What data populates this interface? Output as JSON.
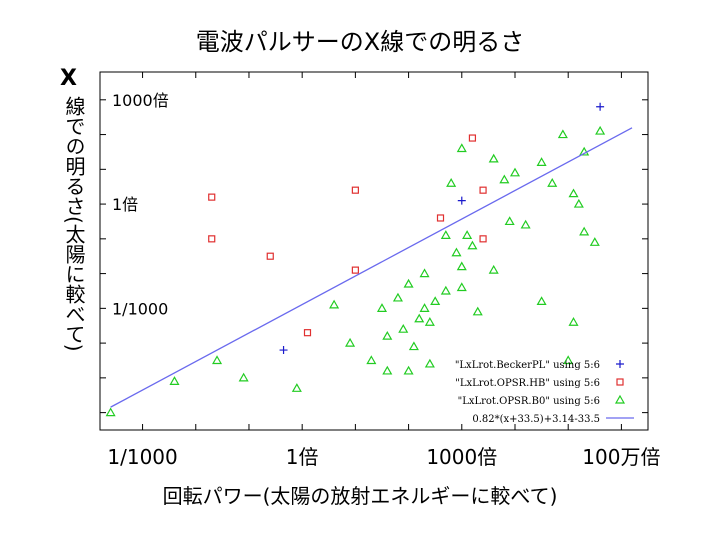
{
  "chart_data": {
    "type": "scatter",
    "title": "電波パルサーのX線での明るさ",
    "xlabel": "回転パワー(太陽の放射エネルギーに較べて)",
    "ylabel_x": "X",
    "ylabel": "線での明るさ(太陽に較べて)",
    "x_scale": "log10",
    "y_scale": "log10",
    "xlim": [
      -3.8,
      6.5
    ],
    "ylim": [
      -6.5,
      3.8
    ],
    "x_ticks": [
      {
        "value": -3,
        "label": "1/1000"
      },
      {
        "value": 0,
        "label": "1倍"
      },
      {
        "value": 3,
        "label": "1000倍"
      },
      {
        "value": 6,
        "label": "100万倍"
      }
    ],
    "y_ticks": [
      {
        "value": 3,
        "label": "1000倍"
      },
      {
        "value": 0,
        "label": "1倍"
      },
      {
        "value": -3,
        "label": "1/1000"
      }
    ],
    "series": [
      {
        "name": "\"LxLrot.BeckerPL\" using 5:6",
        "marker": "plus",
        "color": "#1a1acc",
        "points": [
          [
            -0.35,
            -4.2
          ],
          [
            3.0,
            0.1
          ],
          [
            5.6,
            2.8
          ]
        ]
      },
      {
        "name": "\"LxLrot.OPSR.HB\" using 5:6",
        "marker": "square",
        "color": "#e03030",
        "points": [
          [
            -1.7,
            0.2
          ],
          [
            -1.7,
            -1.0
          ],
          [
            -0.6,
            -1.5
          ],
          [
            0.1,
            -3.7
          ],
          [
            1.0,
            0.4
          ],
          [
            1.0,
            -1.9
          ],
          [
            2.6,
            -0.4
          ],
          [
            3.2,
            1.9
          ],
          [
            3.4,
            0.4
          ],
          [
            3.4,
            -1.0
          ]
        ]
      },
      {
        "name": "\"LxLrot.OPSR.B0\" using 5:6",
        "marker": "triangle",
        "color": "#22cc22",
        "points": [
          [
            -3.6,
            -6.0
          ],
          [
            -2.4,
            -5.1
          ],
          [
            -1.6,
            -4.5
          ],
          [
            -1.1,
            -5.0
          ],
          [
            -0.1,
            -5.3
          ],
          [
            1.3,
            -4.5
          ],
          [
            1.6,
            -4.8
          ],
          [
            2.0,
            -4.8
          ],
          [
            2.1,
            -4.1
          ],
          [
            2.4,
            -4.6
          ],
          [
            2.3,
            -3.0
          ],
          [
            2.7,
            -2.5
          ],
          [
            2.9,
            -1.4
          ],
          [
            3.1,
            -0.9
          ],
          [
            2.8,
            0.6
          ],
          [
            3.0,
            1.6
          ],
          [
            3.2,
            -1.2
          ],
          [
            3.6,
            1.3
          ],
          [
            3.8,
            0.7
          ],
          [
            4.0,
            0.9
          ],
          [
            4.5,
            1.2
          ],
          [
            4.7,
            0.6
          ],
          [
            5.1,
            0.3
          ],
          [
            5.2,
            0.0
          ],
          [
            3.9,
            -0.5
          ],
          [
            2.7,
            -0.9
          ],
          [
            3.0,
            -1.8
          ],
          [
            2.5,
            -2.8
          ],
          [
            2.3,
            -2.0
          ],
          [
            2.0,
            -2.3
          ],
          [
            1.8,
            -2.7
          ],
          [
            1.5,
            -3.0
          ],
          [
            1.6,
            -3.8
          ],
          [
            2.2,
            -3.3
          ],
          [
            2.4,
            -3.4
          ],
          [
            3.0,
            -2.4
          ],
          [
            3.6,
            -1.9
          ],
          [
            5.3,
            -0.8
          ],
          [
            5.3,
            1.5
          ],
          [
            5.6,
            2.1
          ],
          [
            4.9,
            2.0
          ],
          [
            4.2,
            -0.6
          ],
          [
            5.5,
            -1.1
          ],
          [
            0.6,
            -2.9
          ],
          [
            0.9,
            -4.0
          ],
          [
            1.9,
            -3.6
          ],
          [
            3.3,
            -3.1
          ],
          [
            4.5,
            -2.8
          ],
          [
            5.1,
            -3.4
          ],
          [
            5.0,
            -4.5
          ]
        ]
      },
      {
        "name": "0.82*(x+33.5)+3.14-33.5",
        "marker": "line",
        "color": "#6a6aee",
        "slope": 0.82,
        "intercept": -2.89,
        "x_range": [
          -3.6,
          6.2
        ]
      }
    ],
    "legend_position": "bottom-right"
  }
}
